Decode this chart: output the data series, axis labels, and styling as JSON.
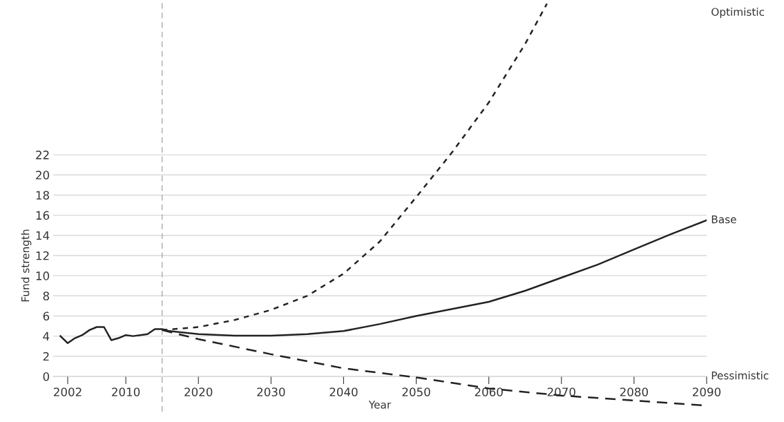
{
  "chart_data": {
    "type": "line",
    "xlabel": "Year",
    "ylabel": "Fund strength",
    "xlim": [
      2000,
      2090
    ],
    "xticks": [
      2002,
      2010,
      2020,
      2030,
      2040,
      2050,
      2060,
      2070,
      2080,
      2090
    ],
    "ylim": [
      -3.5,
      37.3
    ],
    "yticks": [
      0,
      2,
      4,
      6,
      8,
      10,
      12,
      14,
      16,
      18,
      20,
      22
    ],
    "grid": "y",
    "marker": "none",
    "ref_lines": [
      {
        "axis": "x",
        "value": 2015,
        "color": "#aaaaaa",
        "line_style": "dashed"
      }
    ],
    "series": [
      {
        "name": "Optimistic",
        "color": "#222222",
        "line_style": "dotted",
        "x": [
          2015,
          2020,
          2025,
          2030,
          2035,
          2040,
          2045,
          2050,
          2055,
          2060,
          2065,
          2068
        ],
        "values": [
          4.6,
          4.9,
          5.6,
          6.6,
          8.0,
          10.2,
          13.4,
          17.8,
          22.3,
          27.2,
          33.0,
          37.0
        ]
      },
      {
        "name": "Base",
        "color": "#222222",
        "line_style": "solid",
        "x": [
          2001,
          2002,
          2003,
          2004,
          2005,
          2006,
          2007,
          2008,
          2009,
          2010,
          2011,
          2012,
          2013,
          2014,
          2015,
          2016,
          2020,
          2025,
          2030,
          2035,
          2040,
          2045,
          2050,
          2055,
          2060,
          2065,
          2070,
          2075,
          2080,
          2085,
          2090
        ],
        "values": [
          4.0,
          3.3,
          3.8,
          4.1,
          4.6,
          4.9,
          4.9,
          3.6,
          3.8,
          4.1,
          4.0,
          4.1,
          4.2,
          4.7,
          4.7,
          4.5,
          4.2,
          4.05,
          4.05,
          4.2,
          4.5,
          5.2,
          6.0,
          6.7,
          7.4,
          8.5,
          9.8,
          11.1,
          12.6,
          14.1,
          15.5
        ]
      },
      {
        "name": "Pessimistic",
        "color": "#222222",
        "line_style": "dashed",
        "x": [
          2015,
          2020,
          2030,
          2040,
          2050,
          2060,
          2070,
          2080,
          2090
        ],
        "values": [
          4.6,
          3.7,
          2.2,
          0.8,
          -0.1,
          -1.2,
          -1.9,
          -2.4,
          -2.9
        ]
      }
    ]
  }
}
